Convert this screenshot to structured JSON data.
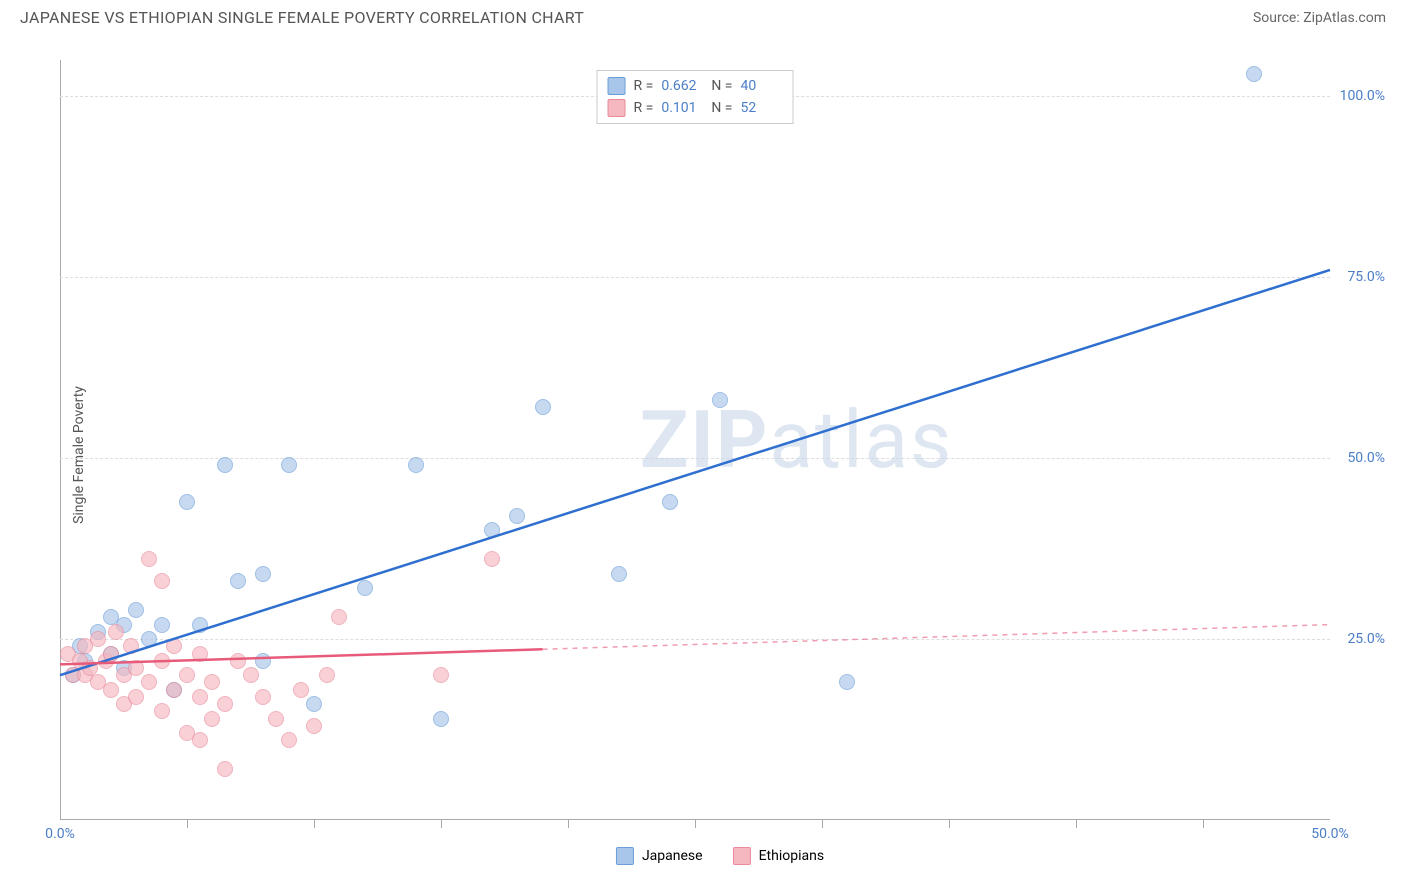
{
  "header": {
    "title": "JAPANESE VS ETHIOPIAN SINGLE FEMALE POVERTY CORRELATION CHART",
    "source_label": "Source:",
    "source_name": "ZipAtlas.com"
  },
  "chart": {
    "type": "scatter",
    "y_axis_title": "Single Female Poverty",
    "xlim": [
      0,
      50
    ],
    "ylim": [
      0,
      105
    ],
    "x_ticks": [
      0,
      50
    ],
    "x_tick_labels": [
      "0.0%",
      "50.0%"
    ],
    "x_tick_minor_positions": [
      5,
      10,
      15,
      20,
      25,
      30,
      35,
      40,
      45
    ],
    "y_ticks": [
      25,
      50,
      75,
      100
    ],
    "y_tick_labels": [
      "25.0%",
      "50.0%",
      "75.0%",
      "100.0%"
    ],
    "grid_color": "#dddddd",
    "background_color": "#ffffff",
    "axis_color": "#aaaaaa",
    "tick_label_color": "#4a7ec7",
    "watermark": "ZIPatlas",
    "series": [
      {
        "name": "Japanese",
        "color_fill": "#a8c6ea",
        "color_stroke": "#6b9ed8",
        "trend_color": "#2f6fd0",
        "trend_width": 2.5,
        "R": "0.662",
        "N": "40",
        "trend": {
          "x1": 0,
          "y1": 20,
          "x2": 50,
          "y2": 76,
          "solid_until_x": 50
        },
        "points": [
          {
            "x": 0.5,
            "y": 20
          },
          {
            "x": 0.8,
            "y": 24
          },
          {
            "x": 1.0,
            "y": 22
          },
          {
            "x": 1.5,
            "y": 26
          },
          {
            "x": 2.0,
            "y": 23
          },
          {
            "x": 2.0,
            "y": 28
          },
          {
            "x": 2.5,
            "y": 21
          },
          {
            "x": 2.5,
            "y": 27
          },
          {
            "x": 3.0,
            "y": 29
          },
          {
            "x": 3.5,
            "y": 25
          },
          {
            "x": 4.0,
            "y": 27
          },
          {
            "x": 4.5,
            "y": 18
          },
          {
            "x": 5.0,
            "y": 44
          },
          {
            "x": 5.5,
            "y": 27
          },
          {
            "x": 6.5,
            "y": 49
          },
          {
            "x": 7.0,
            "y": 33
          },
          {
            "x": 8.0,
            "y": 22
          },
          {
            "x": 8.0,
            "y": 34
          },
          {
            "x": 9.0,
            "y": 49
          },
          {
            "x": 10.0,
            "y": 16
          },
          {
            "x": 12.0,
            "y": 32
          },
          {
            "x": 14.0,
            "y": 49
          },
          {
            "x": 15.0,
            "y": 14
          },
          {
            "x": 17.0,
            "y": 40
          },
          {
            "x": 18.0,
            "y": 42
          },
          {
            "x": 19.0,
            "y": 57
          },
          {
            "x": 22.0,
            "y": 34
          },
          {
            "x": 24.0,
            "y": 44
          },
          {
            "x": 26.0,
            "y": 58
          },
          {
            "x": 31.0,
            "y": 19
          },
          {
            "x": 47.0,
            "y": 103
          }
        ]
      },
      {
        "name": "Ethiopians",
        "color_fill": "#f5b8c1",
        "color_stroke": "#ea8a9a",
        "trend_color": "#e85a7a",
        "trend_width": 2.5,
        "R": "0.101",
        "N": "52",
        "trend": {
          "x1": 0,
          "y1": 21.5,
          "x2": 50,
          "y2": 27,
          "solid_until_x": 19
        },
        "points": [
          {
            "x": 0.3,
            "y": 23
          },
          {
            "x": 0.5,
            "y": 20
          },
          {
            "x": 0.8,
            "y": 22
          },
          {
            "x": 1.0,
            "y": 24
          },
          {
            "x": 1.0,
            "y": 20
          },
          {
            "x": 1.2,
            "y": 21
          },
          {
            "x": 1.5,
            "y": 25
          },
          {
            "x": 1.5,
            "y": 19
          },
          {
            "x": 1.8,
            "y": 22
          },
          {
            "x": 2.0,
            "y": 18
          },
          {
            "x": 2.0,
            "y": 23
          },
          {
            "x": 2.2,
            "y": 26
          },
          {
            "x": 2.5,
            "y": 16
          },
          {
            "x": 2.5,
            "y": 20
          },
          {
            "x": 2.8,
            "y": 24
          },
          {
            "x": 3.0,
            "y": 17
          },
          {
            "x": 3.0,
            "y": 21
          },
          {
            "x": 3.5,
            "y": 36
          },
          {
            "x": 3.5,
            "y": 19
          },
          {
            "x": 4.0,
            "y": 15
          },
          {
            "x": 4.0,
            "y": 22
          },
          {
            "x": 4.0,
            "y": 33
          },
          {
            "x": 4.5,
            "y": 18
          },
          {
            "x": 4.5,
            "y": 24
          },
          {
            "x": 5.0,
            "y": 12
          },
          {
            "x": 5.0,
            "y": 20
          },
          {
            "x": 5.5,
            "y": 11
          },
          {
            "x": 5.5,
            "y": 17
          },
          {
            "x": 5.5,
            "y": 23
          },
          {
            "x": 6.0,
            "y": 14
          },
          {
            "x": 6.0,
            "y": 19
          },
          {
            "x": 6.5,
            "y": 7
          },
          {
            "x": 6.5,
            "y": 16
          },
          {
            "x": 7.0,
            "y": 22
          },
          {
            "x": 7.5,
            "y": 20
          },
          {
            "x": 8.0,
            "y": 17
          },
          {
            "x": 8.5,
            "y": 14
          },
          {
            "x": 9.0,
            "y": 11
          },
          {
            "x": 9.5,
            "y": 18
          },
          {
            "x": 10.0,
            "y": 13
          },
          {
            "x": 10.5,
            "y": 20
          },
          {
            "x": 11.0,
            "y": 28
          },
          {
            "x": 15.0,
            "y": 20
          },
          {
            "x": 17.0,
            "y": 36
          }
        ]
      }
    ]
  }
}
